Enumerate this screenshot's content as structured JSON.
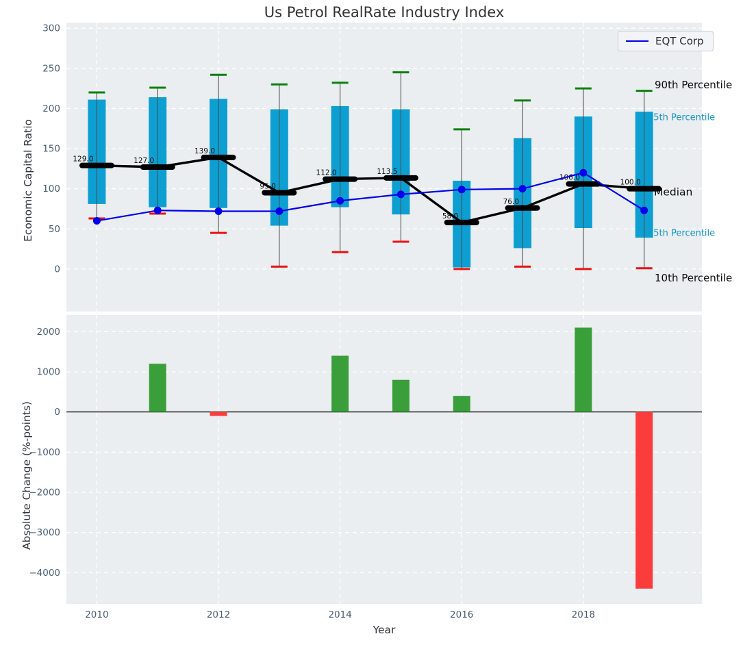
{
  "chart_data": [
    {
      "type": "box-percentile-line",
      "title": "Us Petrol RealRate Industry Index",
      "ylabel": "Economic Capital Ratio",
      "ylim": [
        -53,
        307
      ],
      "yticks": [
        300,
        250,
        200,
        150,
        100,
        50,
        0
      ],
      "xlim": [
        2009.5,
        2019.95
      ],
      "xticks": [
        2010,
        2012,
        2014,
        2016,
        2018
      ],
      "grid": true,
      "legend": {
        "label": "EQT Corp",
        "position": "upper right"
      },
      "years": [
        2010,
        2011,
        2012,
        2013,
        2014,
        2015,
        2016,
        2017,
        2018,
        2019
      ],
      "percentile_90": [
        220,
        226,
        242,
        230,
        232,
        245,
        174,
        210,
        225,
        222
      ],
      "percentile_75": [
        211,
        214,
        212,
        199,
        203,
        199,
        110,
        163,
        190,
        196
      ],
      "median": [
        129.0,
        127.0,
        139.0,
        95.0,
        112.0,
        113.5,
        58.0,
        76.0,
        106.0,
        100.0
      ],
      "percentile_25": [
        81,
        77,
        76,
        54,
        77,
        68,
        2,
        26,
        51,
        39
      ],
      "percentile_10": [
        63,
        69,
        45,
        3,
        21,
        34,
        0,
        3,
        0,
        1
      ],
      "median_labels": [
        "129.0",
        "127.0",
        "139.0",
        "95.0",
        "112.0",
        "113.5",
        "58.0",
        "76.0",
        "106.0",
        "100.0"
      ],
      "series": [
        {
          "name": "EQT Corp",
          "color": "#0000ee",
          "values": [
            60,
            73,
            72,
            72,
            85,
            93,
            99,
            100,
            120,
            73
          ]
        }
      ],
      "annotations": [
        {
          "text": "90th Percentile",
          "color": "#0a0a0a"
        },
        {
          "text": "75th Percentile",
          "color": "#1694c8"
        },
        {
          "text": "Median",
          "color": "#0a0a0a"
        },
        {
          "text": "25th Percentile",
          "color": "#1694c8"
        },
        {
          "text": "10th Percentile",
          "color": "#0a0a0a"
        }
      ],
      "colors": {
        "bar": "#0d9fd1",
        "cap_high": "#0c800c",
        "cap_low": "#ee1111",
        "median": "#000000",
        "whisker": "#4d4d4d",
        "axes_bg": "#eaeef0",
        "grid": "#ffffff"
      }
    },
    {
      "type": "bar",
      "ylabel": "Absolute Change (%-points)",
      "xlabel": "Year",
      "ylim": [
        -4780,
        2415
      ],
      "yticks": [
        2000,
        1000,
        0,
        -1000,
        -2000,
        -3000,
        -4000
      ],
      "xticks": [
        2010,
        2012,
        2014,
        2016,
        2018
      ],
      "grid": true,
      "categories": [
        2010,
        2011,
        2012,
        2013,
        2014,
        2015,
        2016,
        2017,
        2018,
        2019
      ],
      "values": [
        null,
        1200,
        -100,
        null,
        1400,
        800,
        400,
        null,
        2100,
        -4400
      ],
      "colors": {
        "positive": "#3a9e3a",
        "negative": "#fa3c3c",
        "zero_line": "#000000",
        "axes_bg": "#eaeef0",
        "grid": "#ffffff"
      }
    }
  ],
  "tick_color": "#4a5c72"
}
